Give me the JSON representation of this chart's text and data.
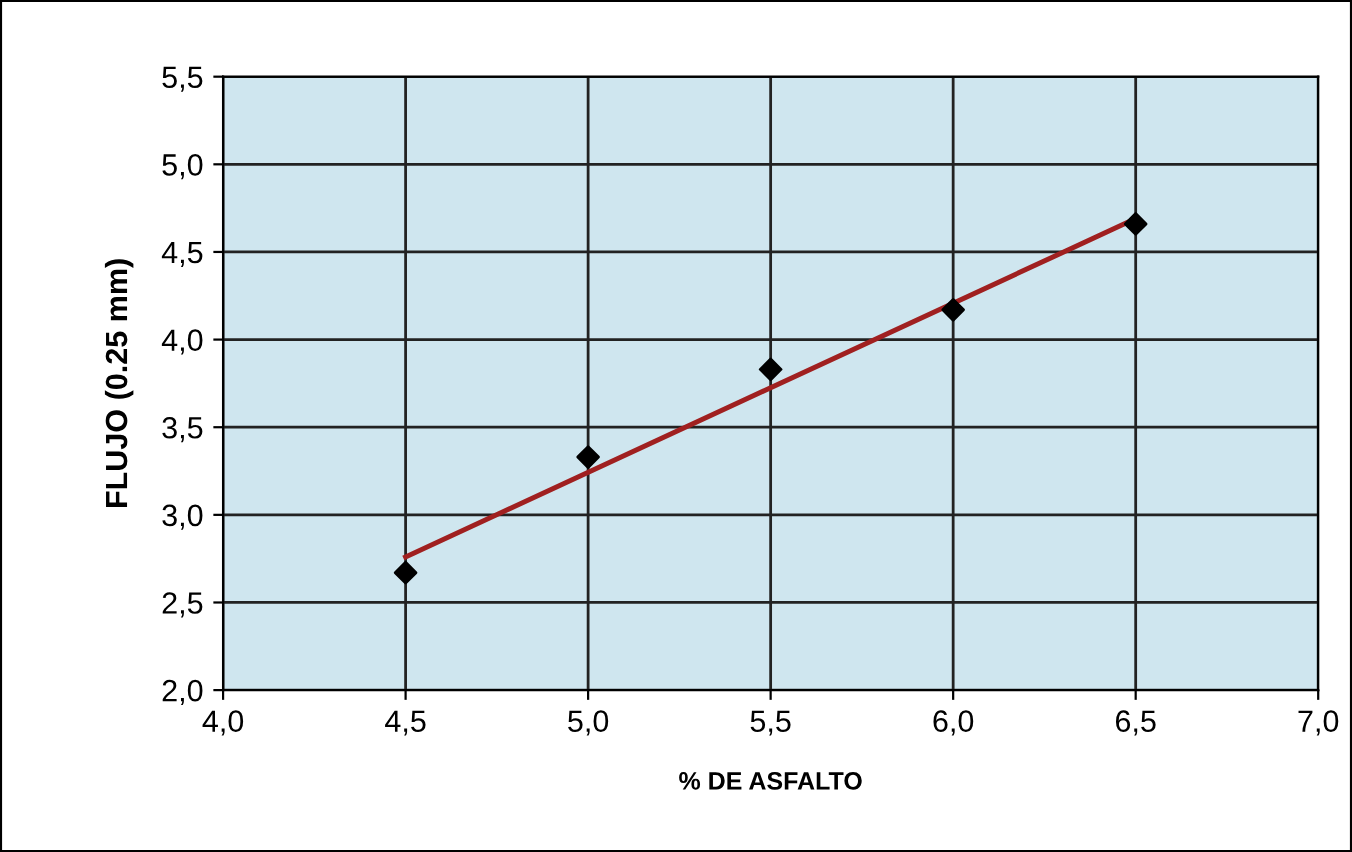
{
  "chart_data": {
    "type": "scatter",
    "xlabel": "% DE ASFALTO",
    "ylabel": "FLUJO (0.25 mm)",
    "xlim": [
      4.0,
      7.0
    ],
    "xticks": [
      {
        "value": 4.0,
        "label": "4,0"
      },
      {
        "value": 4.5,
        "label": "4,5"
      },
      {
        "value": 5.0,
        "label": "5,0"
      },
      {
        "value": 5.5,
        "label": "5,5"
      },
      {
        "value": 6.0,
        "label": "6,0"
      },
      {
        "value": 6.5,
        "label": "6,5"
      },
      {
        "value": 7.0,
        "label": "7,0"
      }
    ],
    "ylim": [
      2.0,
      5.5
    ],
    "yticks": [
      {
        "value": 2.0,
        "label": "2,0"
      },
      {
        "value": 2.5,
        "label": "2,5"
      },
      {
        "value": 3.0,
        "label": "3,0"
      },
      {
        "value": 3.5,
        "label": "3,5"
      },
      {
        "value": 4.0,
        "label": "4,0"
      },
      {
        "value": 4.5,
        "label": "4,5"
      },
      {
        "value": 5.0,
        "label": "5,0"
      },
      {
        "value": 5.5,
        "label": "5,5"
      }
    ],
    "grid": true,
    "series": [
      {
        "marker": "diamond",
        "color": "#000000",
        "x": [
          4.5,
          5.0,
          5.5,
          6.0,
          6.5
        ],
        "values": [
          2.67,
          3.33,
          3.83,
          4.17,
          4.66
        ]
      },
      {
        "type": "line",
        "color": "#a02020",
        "x": [
          4.5,
          6.5
        ],
        "values": [
          2.76,
          4.69
        ]
      }
    ]
  }
}
